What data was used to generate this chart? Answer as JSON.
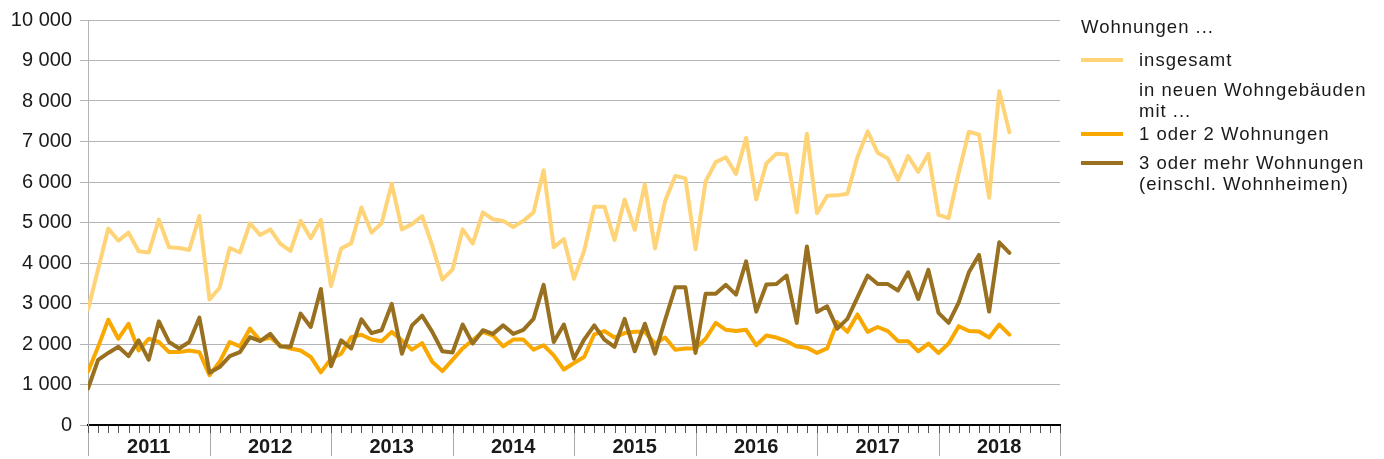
{
  "chart_data": {
    "type": "line",
    "x": [
      "2011-01",
      "2011-02",
      "2011-03",
      "2011-04",
      "2011-05",
      "2011-06",
      "2011-07",
      "2011-08",
      "2011-09",
      "2011-10",
      "2011-11",
      "2011-12",
      "2012-01",
      "2012-02",
      "2012-03",
      "2012-04",
      "2012-05",
      "2012-06",
      "2012-07",
      "2012-08",
      "2012-09",
      "2012-10",
      "2012-11",
      "2012-12",
      "2013-01",
      "2013-02",
      "2013-03",
      "2013-04",
      "2013-05",
      "2013-06",
      "2013-07",
      "2013-08",
      "2013-09",
      "2013-10",
      "2013-11",
      "2013-12",
      "2014-01",
      "2014-02",
      "2014-03",
      "2014-04",
      "2014-05",
      "2014-06",
      "2014-07",
      "2014-08",
      "2014-09",
      "2014-10",
      "2014-11",
      "2014-12",
      "2015-01",
      "2015-02",
      "2015-03",
      "2015-04",
      "2015-05",
      "2015-06",
      "2015-07",
      "2015-08",
      "2015-09",
      "2015-10",
      "2015-11",
      "2015-12",
      "2016-01",
      "2016-02",
      "2016-03",
      "2016-04",
      "2016-05",
      "2016-06",
      "2016-07",
      "2016-08",
      "2016-09",
      "2016-10",
      "2016-11",
      "2016-12",
      "2017-01",
      "2017-02",
      "2017-03",
      "2017-04",
      "2017-05",
      "2017-06",
      "2017-07",
      "2017-08",
      "2017-09",
      "2017-10",
      "2017-11",
      "2017-12",
      "2018-01",
      "2018-02",
      "2018-03",
      "2018-04",
      "2018-05",
      "2018-06",
      "2018-07",
      "2018-08"
    ],
    "xlim": [
      "2011-01",
      "2019-01"
    ],
    "xticks": [
      {
        "value": "2011-01",
        "label": null
      },
      {
        "value": "2011-02",
        "label": null
      },
      {
        "value": "2011-03",
        "label": null
      },
      {
        "value": "2011-04",
        "label": null
      },
      {
        "value": "2011-05",
        "label": null
      },
      {
        "value": "2011-06",
        "label": null
      },
      {
        "value": "2011-07",
        "label": "2011"
      },
      {
        "value": "2011-08",
        "label": null
      },
      {
        "value": "2011-09",
        "label": null
      },
      {
        "value": "2011-10",
        "label": null
      },
      {
        "value": "2011-11",
        "label": null
      },
      {
        "value": "2011-12",
        "label": null
      },
      {
        "value": "2012-01",
        "label": null
      },
      {
        "value": "2012-02",
        "label": null
      },
      {
        "value": "2012-03",
        "label": null
      },
      {
        "value": "2012-04",
        "label": null
      },
      {
        "value": "2012-05",
        "label": null
      },
      {
        "value": "2012-06",
        "label": null
      },
      {
        "value": "2012-07",
        "label": "2012"
      },
      {
        "value": "2012-08",
        "label": null
      },
      {
        "value": "2012-09",
        "label": null
      },
      {
        "value": "2012-10",
        "label": null
      },
      {
        "value": "2012-11",
        "label": null
      },
      {
        "value": "2012-12",
        "label": null
      },
      {
        "value": "2013-01",
        "label": null
      },
      {
        "value": "2013-02",
        "label": null
      },
      {
        "value": "2013-03",
        "label": null
      },
      {
        "value": "2013-04",
        "label": null
      },
      {
        "value": "2013-05",
        "label": null
      },
      {
        "value": "2013-06",
        "label": null
      },
      {
        "value": "2013-07",
        "label": "2013"
      },
      {
        "value": "2013-08",
        "label": null
      },
      {
        "value": "2013-09",
        "label": null
      },
      {
        "value": "2013-10",
        "label": null
      },
      {
        "value": "2013-11",
        "label": null
      },
      {
        "value": "2013-12",
        "label": null
      },
      {
        "value": "2014-01",
        "label": null
      },
      {
        "value": "2014-02",
        "label": null
      },
      {
        "value": "2014-03",
        "label": null
      },
      {
        "value": "2014-04",
        "label": null
      },
      {
        "value": "2014-05",
        "label": null
      },
      {
        "value": "2014-06",
        "label": null
      },
      {
        "value": "2014-07",
        "label": "2014"
      },
      {
        "value": "2014-08",
        "label": null
      },
      {
        "value": "2014-09",
        "label": null
      },
      {
        "value": "2014-10",
        "label": null
      },
      {
        "value": "2014-11",
        "label": null
      },
      {
        "value": "2014-12",
        "label": null
      },
      {
        "value": "2015-01",
        "label": null
      },
      {
        "value": "2015-02",
        "label": null
      },
      {
        "value": "2015-03",
        "label": null
      },
      {
        "value": "2015-04",
        "label": null
      },
      {
        "value": "2015-05",
        "label": null
      },
      {
        "value": "2015-06",
        "label": null
      },
      {
        "value": "2015-07",
        "label": "2015"
      },
      {
        "value": "2015-08",
        "label": null
      },
      {
        "value": "2015-09",
        "label": null
      },
      {
        "value": "2015-10",
        "label": null
      },
      {
        "value": "2015-11",
        "label": null
      },
      {
        "value": "2015-12",
        "label": null
      },
      {
        "value": "2016-01",
        "label": null
      },
      {
        "value": "2016-02",
        "label": null
      },
      {
        "value": "2016-03",
        "label": null
      },
      {
        "value": "2016-04",
        "label": null
      },
      {
        "value": "2016-05",
        "label": null
      },
      {
        "value": "2016-06",
        "label": null
      },
      {
        "value": "2016-07",
        "label": "2016"
      },
      {
        "value": "2016-08",
        "label": null
      },
      {
        "value": "2016-09",
        "label": null
      },
      {
        "value": "2016-10",
        "label": null
      },
      {
        "value": "2016-11",
        "label": null
      },
      {
        "value": "2016-12",
        "label": null
      },
      {
        "value": "2017-01",
        "label": null
      },
      {
        "value": "2017-02",
        "label": null
      },
      {
        "value": "2017-03",
        "label": null
      },
      {
        "value": "2017-04",
        "label": null
      },
      {
        "value": "2017-05",
        "label": null
      },
      {
        "value": "2017-06",
        "label": null
      },
      {
        "value": "2017-07",
        "label": "2017"
      },
      {
        "value": "2017-08",
        "label": null
      },
      {
        "value": "2017-09",
        "label": null
      },
      {
        "value": "2017-10",
        "label": null
      },
      {
        "value": "2017-11",
        "label": null
      },
      {
        "value": "2017-12",
        "label": null
      },
      {
        "value": "2018-01",
        "label": null
      },
      {
        "value": "2018-02",
        "label": null
      },
      {
        "value": "2018-03",
        "label": null
      },
      {
        "value": "2018-04",
        "label": null
      },
      {
        "value": "2018-05",
        "label": null
      },
      {
        "value": "2018-06",
        "label": null
      },
      {
        "value": "2018-07",
        "label": "2018"
      },
      {
        "value": "2018-08",
        "label": null
      },
      {
        "value": "2018-09",
        "label": null
      },
      {
        "value": "2018-10",
        "label": null
      },
      {
        "value": "2018-11",
        "label": null
      },
      {
        "value": "2018-12",
        "label": null
      },
      {
        "value": "2019-01",
        "label": null
      }
    ],
    "ylim": [
      0,
      10000
    ],
    "yticks": [
      0,
      {
        "value": 1000,
        "label": "1 000"
      },
      {
        "value": 2000,
        "label": "2 000"
      },
      {
        "value": 3000,
        "label": "3 000"
      },
      {
        "value": 4000,
        "label": "4 000"
      },
      {
        "value": 5000,
        "label": "5 000"
      },
      {
        "value": 6000,
        "label": "6 000"
      },
      {
        "value": 7000,
        "label": "7 000"
      },
      {
        "value": 8000,
        "label": "8 000"
      },
      {
        "value": 9000,
        "label": "9 000"
      },
      {
        "value": 10000,
        "label": "10 000"
      }
    ],
    "legend": "right",
    "legend_title": "Wohnungen ...",
    "annotations": [
      "in neuen Wohngebäuden mit ..."
    ],
    "grid": "y",
    "marker": "none",
    "line_style": "solid",
    "series": [
      {
        "name": "insgesamt",
        "color": "#ffd478",
        "values": [
          2850,
          3850,
          4850,
          4550,
          4750,
          4290,
          4260,
          5070,
          4390,
          4370,
          4320,
          5160,
          3100,
          3390,
          4370,
          4260,
          4980,
          4690,
          4830,
          4470,
          4300,
          5040,
          4610,
          5060,
          3430,
          4360,
          4490,
          5370,
          4750,
          4980,
          5960,
          4830,
          4960,
          5160,
          4430,
          3590,
          3840,
          4830,
          4480,
          5250,
          5080,
          5040,
          4890,
          5040,
          5250,
          6290,
          4390,
          4590,
          3610,
          4300,
          5390,
          5390,
          4570,
          5570,
          4820,
          5940,
          4360,
          5530,
          6150,
          6090,
          4340,
          6020,
          6490,
          6610,
          6200,
          7090,
          5570,
          6460,
          6700,
          6680,
          5250,
          7190,
          5230,
          5660,
          5670,
          5710,
          6620,
          7250,
          6720,
          6580,
          6050,
          6640,
          6250,
          6700,
          5190,
          5110,
          6230,
          7240,
          7170,
          5610,
          8240,
          7230
        ]
      },
      {
        "name": "1 oder 2 Wohnungen",
        "color": "#f9a800",
        "values": [
          1320,
          1930,
          2600,
          2130,
          2500,
          1840,
          2130,
          2050,
          1800,
          1800,
          1840,
          1800,
          1230,
          1560,
          2050,
          1940,
          2380,
          2090,
          2160,
          1960,
          1890,
          1840,
          1680,
          1300,
          1640,
          1760,
          2170,
          2230,
          2110,
          2070,
          2300,
          2090,
          1860,
          2020,
          1560,
          1330,
          1610,
          1890,
          2100,
          2300,
          2210,
          1940,
          2110,
          2110,
          1860,
          1970,
          1720,
          1370,
          1530,
          1680,
          2240,
          2320,
          2160,
          2270,
          2300,
          2300,
          2010,
          2160,
          1860,
          1890,
          1890,
          2130,
          2520,
          2350,
          2320,
          2350,
          1970,
          2210,
          2160,
          2070,
          1940,
          1910,
          1780,
          1890,
          2540,
          2300,
          2730,
          2300,
          2420,
          2320,
          2070,
          2070,
          1820,
          2010,
          1780,
          2010,
          2440,
          2320,
          2310,
          2160,
          2480,
          2230
        ]
      },
      {
        "name": "3 oder mehr Wohnungen (einschl. Wohnheimen)",
        "color": "#98701f",
        "values": [
          900,
          1610,
          1780,
          1930,
          1700,
          2090,
          1610,
          2560,
          2050,
          1890,
          2050,
          2650,
          1290,
          1430,
          1700,
          1800,
          2170,
          2070,
          2250,
          1940,
          1930,
          2750,
          2420,
          3360,
          1450,
          2090,
          1890,
          2610,
          2270,
          2340,
          2990,
          1760,
          2460,
          2700,
          2300,
          1820,
          1790,
          2480,
          2010,
          2340,
          2250,
          2460,
          2250,
          2350,
          2620,
          3460,
          2050,
          2480,
          1640,
          2110,
          2460,
          2110,
          1930,
          2620,
          1820,
          2500,
          1760,
          2600,
          3400,
          3400,
          1780,
          3240,
          3240,
          3460,
          3220,
          4040,
          2800,
          3470,
          3480,
          3690,
          2520,
          4410,
          2790,
          2930,
          2380,
          2620,
          3150,
          3690,
          3480,
          3480,
          3320,
          3770,
          3110,
          3830,
          2770,
          2520,
          3030,
          3770,
          4200,
          2800,
          4510,
          4250
        ]
      }
    ]
  }
}
